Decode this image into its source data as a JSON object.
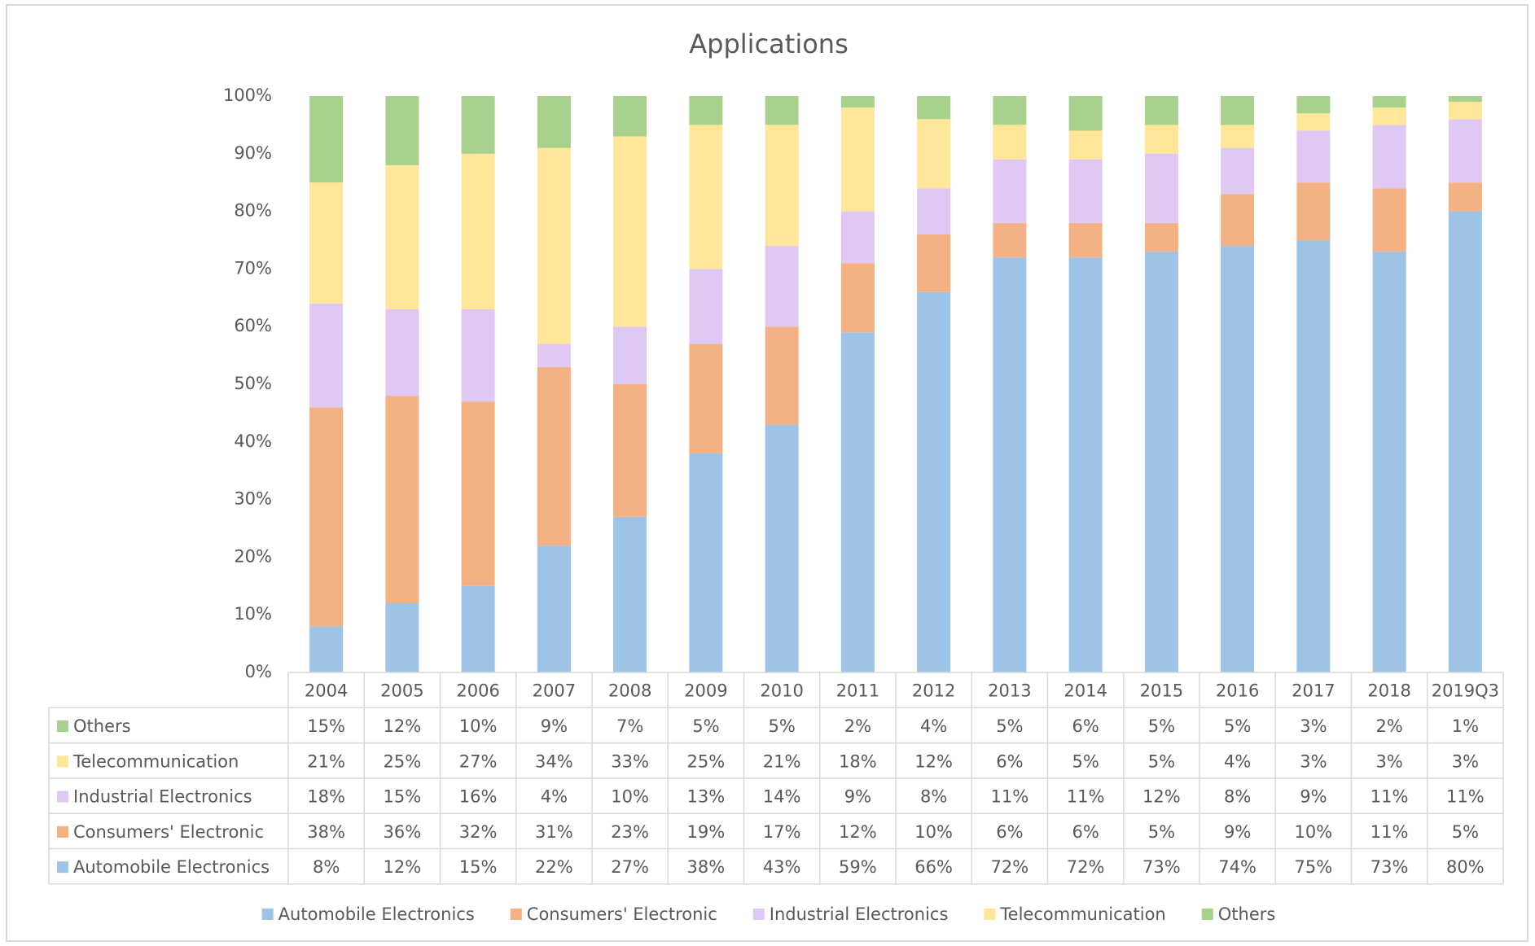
{
  "chart_data": {
    "type": "stacked_bar",
    "title": "Applications",
    "categories": [
      "2004",
      "2005",
      "2006",
      "2007",
      "2008",
      "2009",
      "2010",
      "2011",
      "2012",
      "2013",
      "2014",
      "2015",
      "2016",
      "2017",
      "2018",
      "2019Q3"
    ],
    "series": [
      {
        "name": "Automobile Electronics",
        "color": "#9dc3e6",
        "values": [
          8,
          12,
          15,
          22,
          27,
          38,
          43,
          59,
          66,
          72,
          72,
          73,
          74,
          75,
          73,
          80
        ],
        "value_labels": [
          "8%",
          "12%",
          "15%",
          "22%",
          "27%",
          "38%",
          "43%",
          "59%",
          "66%",
          "72%",
          "72%",
          "73%",
          "74%",
          "75%",
          "73%",
          "80%"
        ]
      },
      {
        "name": "Consumers' Electronic",
        "color": "#f4b183",
        "values": [
          38,
          36,
          32,
          31,
          23,
          19,
          17,
          12,
          10,
          6,
          6,
          5,
          9,
          10,
          11,
          5
        ],
        "value_labels": [
          "38%",
          "36%",
          "32%",
          "31%",
          "23%",
          "19%",
          "17%",
          "12%",
          "10%",
          "6%",
          "6%",
          "5%",
          "9%",
          "10%",
          "11%",
          "5%"
        ]
      },
      {
        "name": "Industrial Electronics",
        "color": "#e0c8f4",
        "values": [
          18,
          15,
          16,
          4,
          10,
          13,
          14,
          9,
          8,
          11,
          11,
          12,
          8,
          9,
          11,
          11
        ],
        "value_labels": [
          "18%",
          "15%",
          "16%",
          "4%",
          "10%",
          "13%",
          "14%",
          "9%",
          "8%",
          "11%",
          "11%",
          "12%",
          "8%",
          "9%",
          "11%",
          "11%"
        ]
      },
      {
        "name": "Telecommunication",
        "color": "#ffe699",
        "values": [
          21,
          25,
          27,
          34,
          33,
          25,
          21,
          18,
          12,
          6,
          5,
          5,
          4,
          3,
          3,
          3
        ],
        "value_labels": [
          "21%",
          "25%",
          "27%",
          "34%",
          "33%",
          "25%",
          "21%",
          "18%",
          "12%",
          "6%",
          "5%",
          "5%",
          "4%",
          "3%",
          "3%",
          "3%"
        ]
      },
      {
        "name": "Others",
        "color": "#a9d18e",
        "values": [
          15,
          12,
          10,
          9,
          7,
          5,
          5,
          2,
          4,
          5,
          6,
          5,
          5,
          3,
          2,
          1
        ],
        "value_labels": [
          "15%",
          "12%",
          "10%",
          "9%",
          "7%",
          "5%",
          "5%",
          "2%",
          "4%",
          "5%",
          "6%",
          "5%",
          "5%",
          "3%",
          "2%",
          "1%"
        ]
      }
    ],
    "ylim": [
      0,
      100
    ],
    "yticks": [
      {
        "value": 0,
        "label": "0%"
      },
      {
        "value": 10,
        "label": "10%"
      },
      {
        "value": 20,
        "label": "20%"
      },
      {
        "value": 30,
        "label": "30%"
      },
      {
        "value": 40,
        "label": "40%"
      },
      {
        "value": 50,
        "label": "50%"
      },
      {
        "value": 60,
        "label": "60%"
      },
      {
        "value": 70,
        "label": "70%"
      },
      {
        "value": 80,
        "label": "80%"
      },
      {
        "value": 90,
        "label": "90%"
      },
      {
        "value": 100,
        "label": "100%"
      }
    ],
    "legend": "bottom"
  }
}
